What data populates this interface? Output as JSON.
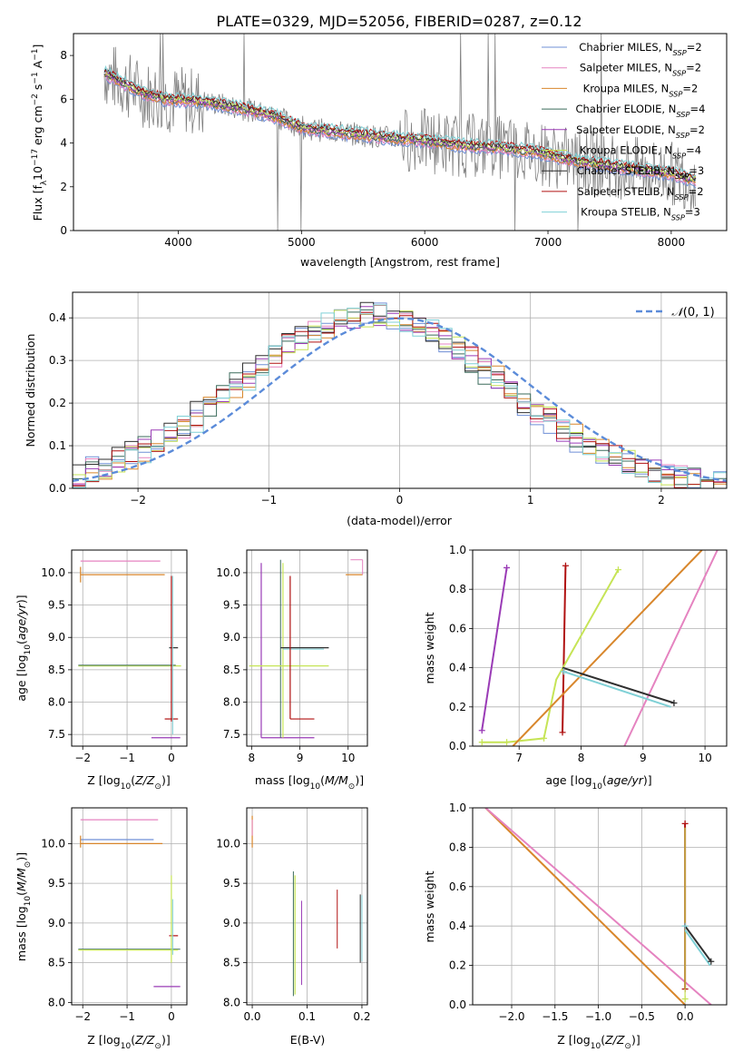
{
  "figure": {
    "title": "PLATE=0329, MJD=52056, FIBERID=0287, z=0.12"
  },
  "colors": {
    "chabrier_miles": "#6f8fd6",
    "salpeter_miles": "#e583c0",
    "kroupa_miles": "#d8862b",
    "chabrier_elodie": "#3b6b5b",
    "salpeter_elodie": "#9a3bb6",
    "kroupa_elodie": "#c6e456",
    "chabrier_stelib": "#2f2f2f",
    "salpeter_stelib": "#b01010",
    "kroupa_stelib": "#7fd0d6",
    "data": "#808080",
    "normal": "#5b8bd9"
  },
  "chart_data": [
    {
      "id": "spectrum",
      "type": "line",
      "xlabel": "wavelength [Angstrom, rest frame]",
      "ylabel": "Flux [f$_\\lambda$10$^{-17}$ erg cm$^{-2}$ s$^{-1}$ A$^{-1}$]",
      "xlim": [
        3150,
        8450
      ],
      "ylim": [
        0,
        9
      ],
      "xticks": [
        "4000",
        "5000",
        "6000",
        "7000",
        "8000"
      ],
      "yticks": [
        "0",
        "2",
        "4",
        "6",
        "8"
      ],
      "grid": false,
      "legend_position": "upper-right",
      "legend": [
        {
          "label": "Chabrier MILES, N",
          "sub": "SSP",
          "tail": "=2"
        },
        {
          "label": "Salpeter MILES, N",
          "sub": "SSP",
          "tail": "=2"
        },
        {
          "label": "Kroupa MILES, N",
          "sub": "SSP",
          "tail": "=2"
        },
        {
          "label": "Chabrier ELODIE, N",
          "sub": "SSP",
          "tail": "=4"
        },
        {
          "label": "Salpeter ELODIE, N",
          "sub": "SSP",
          "tail": "=2"
        },
        {
          "label": "Kroupa ELODIE, N",
          "sub": "SSP",
          "tail": "=4"
        },
        {
          "label": "Chabrier STELIB, N",
          "sub": "SSP",
          "tail": "=3"
        },
        {
          "label": "Salpeter STELIB, N",
          "sub": "SSP",
          "tail": "=2"
        },
        {
          "label": "Kroupa STELIB, N",
          "sub": "SSP",
          "tail": "=3"
        }
      ],
      "model_continuum": {
        "x": [
          3400,
          3500,
          3700,
          3900,
          4200,
          4500,
          4800,
          5000,
          5300,
          5600,
          6000,
          6300,
          6600,
          6900,
          7200,
          7600,
          8000,
          8200
        ],
        "y": [
          7.2,
          6.9,
          6.3,
          6.0,
          5.9,
          5.6,
          5.2,
          4.7,
          4.5,
          4.3,
          4.1,
          3.9,
          3.8,
          3.6,
          3.2,
          2.9,
          2.6,
          2.3
        ]
      }
    },
    {
      "id": "residuals",
      "type": "area",
      "xlabel": "(data-model)/error",
      "ylabel": "Normed distribution",
      "xlim": [
        -2.5,
        2.5
      ],
      "ylim": [
        0,
        0.46
      ],
      "xticks": [
        "−2",
        "−1",
        "0",
        "1",
        "2"
      ],
      "yticks": [
        "0.0",
        "0.1",
        "0.2",
        "0.3",
        "0.4"
      ],
      "grid": true,
      "legend_label": "$\\mathcal{N}(0,1)$",
      "legend_position": "upper-right"
    },
    {
      "id": "age_vs_Z",
      "type": "scatter",
      "xlabel": "Z [log$_{10}$(Z/Z$_\\odot$)]",
      "ylabel": "age  [log$_{10}$(age/yr)]",
      "xlim": [
        -2.25,
        0.35
      ],
      "ylim": [
        7.32,
        10.35
      ],
      "xticks": [
        "−2",
        "−1",
        "0"
      ],
      "yticks": [
        "7.5",
        "8.0",
        "8.5",
        "9.0",
        "9.5",
        "10.0"
      ]
    },
    {
      "id": "age_vs_mass",
      "type": "scatter",
      "xlabel": "mass [log$_{10}$(M/M$_\\odot$)]",
      "xlim": [
        7.9,
        10.4
      ],
      "ylim": [
        7.32,
        10.35
      ],
      "xticks": [
        "8",
        "9",
        "10"
      ],
      "yticks": [
        "7.5",
        "8.0",
        "8.5",
        "9.0",
        "9.5",
        "10.0"
      ]
    },
    {
      "id": "weight_vs_age",
      "type": "line",
      "xlabel": "age  [log$_{10}$(age/yr)]",
      "ylabel": "mass weight",
      "xlim": [
        6.25,
        10.35
      ],
      "ylim": [
        0,
        1
      ],
      "xticks": [
        "7",
        "8",
        "9",
        "10"
      ],
      "yticks": [
        "0.0",
        "0.2",
        "0.4",
        "0.6",
        "0.8",
        "1.0"
      ]
    },
    {
      "id": "mass_vs_Z",
      "type": "scatter",
      "xlabel": "Z [log$_{10}$(Z/Z$_\\odot$)]",
      "ylabel": "mass [log$_{10}$(M/M$_\\odot$)]",
      "xlim": [
        -2.25,
        0.35
      ],
      "ylim": [
        7.97,
        10.45
      ],
      "xticks": [
        "−2",
        "−1",
        "0"
      ],
      "yticks": [
        "8.0",
        "8.5",
        "9.0",
        "9.5",
        "10.0"
      ]
    },
    {
      "id": "mass_vs_ebv",
      "type": "scatter",
      "xlabel": "E(B-V)",
      "xlim": [
        -0.01,
        0.21
      ],
      "ylim": [
        7.97,
        10.45
      ],
      "xticks": [
        "0.0",
        "0.1",
        "0.2"
      ],
      "yticks": [
        "8.0",
        "8.5",
        "9.0",
        "9.5",
        "10.0"
      ]
    },
    {
      "id": "weight_vs_Z",
      "type": "line",
      "xlabel": "Z [log$_{10}$(Z/Z$_\\odot$)]",
      "ylabel": "mass weight",
      "xlim": [
        -2.45,
        0.48
      ],
      "ylim": [
        0,
        1
      ],
      "xticks": [
        "−2.0",
        "−1.5",
        "−1.0",
        "−0.5",
        "0.0"
      ],
      "yticks": [
        "0.0",
        "0.2",
        "0.4",
        "0.6",
        "0.8",
        "1.0"
      ]
    }
  ]
}
